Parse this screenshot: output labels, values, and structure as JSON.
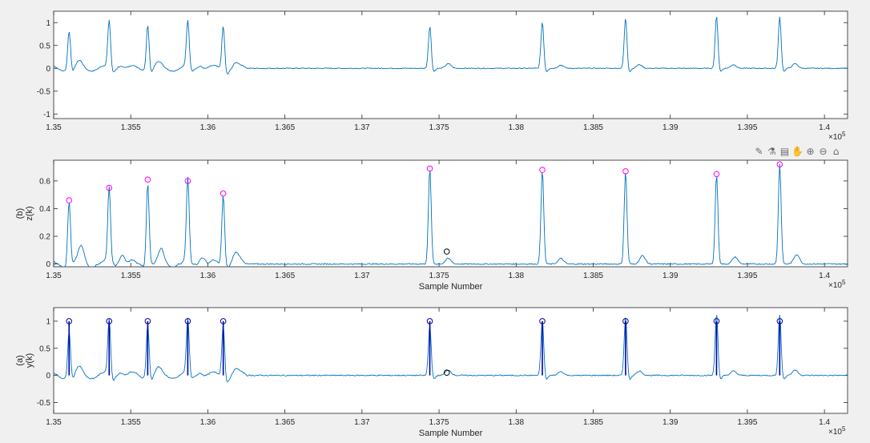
{
  "toolbar": {
    "icons": [
      "brush-icon",
      "data-tips-icon",
      "legend-icon",
      "pan-icon",
      "zoom-in-icon",
      "zoom-out-icon",
      "home-icon"
    ],
    "glyphs": [
      "✎",
      "⚗",
      "▤",
      "✋",
      "⊕",
      "⊖",
      "⌂"
    ]
  },
  "chart_data": [
    {
      "type": "line",
      "title": "",
      "xlabel": "",
      "ylabel": "",
      "xlim": [
        135000,
        140150
      ],
      "ylim": [
        -1.1,
        1.25
      ],
      "x_exponent_label": "×10^5",
      "xticks": [
        135000,
        135500,
        136000,
        136500,
        137000,
        137500,
        138000,
        138500,
        139000,
        139500,
        140000
      ],
      "xtick_labels": [
        "1.35",
        "1.355",
        "1.36",
        "1.365",
        "1.37",
        "1.375",
        "1.38",
        "1.385",
        "1.39",
        "1.395",
        "1.4"
      ],
      "yticks": [
        -1,
        -0.5,
        0,
        0.5,
        1
      ],
      "ytick_labels": [
        "-1",
        "-0.5",
        "0",
        "0.5",
        "1"
      ],
      "grid": false,
      "series": [
        {
          "color": "#0072bd",
          "peaks_x": [
            135100,
            135360,
            135610,
            135870,
            136100,
            137440,
            138170,
            138710,
            139300,
            139710
          ],
          "peaks_y": [
            0.85,
            1.02,
            1.0,
            1.0,
            0.97,
            0.93,
            1.02,
            1.1,
            1.15,
            1.13
          ],
          "minor_bumps_x": [
            135170,
            135430,
            135680,
            135950,
            136180,
            137560,
            138290,
            138800,
            139410,
            139810
          ],
          "minor_bumps_y": [
            0.12,
            0.1,
            0.1,
            0.1,
            0.1,
            0.1,
            0.07,
            0.08,
            0.08,
            0.1
          ]
        }
      ]
    },
    {
      "type": "line",
      "title": "",
      "xlabel": "Sample Number",
      "ylabel": "z(k)",
      "ylabel_prefix": "(b)",
      "xlim": [
        135000,
        140150
      ],
      "ylim": [
        -0.02,
        0.75
      ],
      "x_exponent_label": "×10^5",
      "xticks": [
        135000,
        135500,
        136000,
        136500,
        137000,
        137500,
        138000,
        138500,
        139000,
        139500,
        140000
      ],
      "xtick_labels": [
        "1.35",
        "1.355",
        "1.36",
        "1.365",
        "1.37",
        "1.375",
        "1.38",
        "1.385",
        "1.39",
        "1.395",
        "1.4"
      ],
      "yticks": [
        0,
        0.2,
        0.4,
        0.6
      ],
      "ytick_labels": [
        "0",
        "0.2",
        "0.4",
        "0.6"
      ],
      "grid": false,
      "series": [
        {
          "color": "#0072bd",
          "peaks_x": [
            135100,
            135360,
            135610,
            135870,
            136100,
            137440,
            138170,
            138710,
            139300,
            139710
          ],
          "peaks_y": [
            0.46,
            0.55,
            0.61,
            0.6,
            0.51,
            0.69,
            0.68,
            0.67,
            0.65,
            0.72
          ],
          "minor_bumps_x": [
            135180,
            135440,
            135700,
            135960,
            136180,
            137560,
            138290,
            138820,
            139420,
            139820
          ],
          "minor_bumps_y": [
            0.12,
            0.08,
            0.09,
            0.07,
            0.08,
            0.04,
            0.04,
            0.06,
            0.05,
            0.07
          ]
        }
      ],
      "markers": [
        {
          "color": "#ff00ff",
          "x": [
            135100,
            135360,
            135610,
            135870,
            136100,
            137440,
            138170,
            138710,
            139300,
            139710
          ],
          "y": [
            0.46,
            0.55,
            0.61,
            0.6,
            0.51,
            0.69,
            0.68,
            0.67,
            0.65,
            0.72
          ]
        },
        {
          "color": "#000000",
          "x": [
            137550
          ],
          "y": [
            0.09
          ]
        }
      ]
    },
    {
      "type": "line",
      "title": "",
      "xlabel": "Sample Number",
      "ylabel": "y(k)",
      "ylabel_prefix": "(a)",
      "xlim": [
        135000,
        140150
      ],
      "ylim": [
        -0.7,
        1.25
      ],
      "x_exponent_label": "×10^5",
      "xticks": [
        135000,
        135500,
        136000,
        136500,
        137000,
        137500,
        138000,
        138500,
        139000,
        139500,
        140000
      ],
      "xtick_labels": [
        "1.35",
        "1.355",
        "1.36",
        "1.365",
        "1.37",
        "1.375",
        "1.38",
        "1.385",
        "1.39",
        "1.395",
        "1.4"
      ],
      "yticks": [
        -0.5,
        0,
        0.5,
        1
      ],
      "ytick_labels": [
        "-0.5",
        "0",
        "0.5",
        "1"
      ],
      "grid": false,
      "series": [
        {
          "color": "#0072bd",
          "peaks_x": [
            135100,
            135360,
            135610,
            135870,
            136100,
            137440,
            138170,
            138710,
            139300,
            139710
          ],
          "peaks_y": [
            0.85,
            1.02,
            1.0,
            1.0,
            0.97,
            0.93,
            1.02,
            1.1,
            1.15,
            1.13
          ],
          "minor_bumps_x": [
            135170,
            135430,
            135680,
            135950,
            136180,
            137560,
            138290,
            138800,
            139410,
            139810
          ],
          "minor_bumps_y": [
            0.12,
            0.1,
            0.1,
            0.1,
            0.1,
            0.1,
            0.07,
            0.08,
            0.08,
            0.1
          ]
        },
        {
          "color": "#0000b0",
          "stems_x": [
            135100,
            135360,
            135610,
            135870,
            136100,
            137440,
            138170,
            138710,
            139300,
            139710
          ],
          "stems_y": [
            1,
            1,
            1,
            1,
            1,
            1,
            1,
            1,
            1,
            1
          ]
        }
      ],
      "markers": [
        {
          "color": "#0000b0",
          "x": [
            135100,
            135360,
            135610,
            135870,
            136100,
            137440,
            138170,
            138710,
            139300,
            139710
          ],
          "y": [
            1,
            1,
            1,
            1,
            1,
            1,
            1,
            1,
            1,
            1
          ]
        },
        {
          "color": "#000000",
          "x": [
            137550
          ],
          "y": [
            0.05
          ]
        }
      ]
    }
  ]
}
